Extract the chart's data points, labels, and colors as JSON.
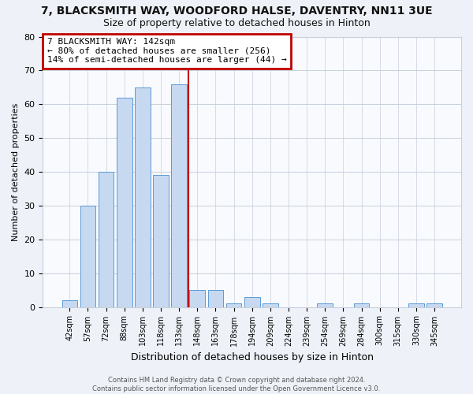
{
  "title": "7, BLACKSMITH WAY, WOODFORD HALSE, DAVENTRY, NN11 3UE",
  "subtitle": "Size of property relative to detached houses in Hinton",
  "xlabel": "Distribution of detached houses by size in Hinton",
  "ylabel": "Number of detached properties",
  "bin_labels": [
    "42sqm",
    "57sqm",
    "72sqm",
    "88sqm",
    "103sqm",
    "118sqm",
    "133sqm",
    "148sqm",
    "163sqm",
    "178sqm",
    "194sqm",
    "209sqm",
    "224sqm",
    "239sqm",
    "254sqm",
    "269sqm",
    "284sqm",
    "300sqm",
    "315sqm",
    "330sqm",
    "345sqm"
  ],
  "bar_heights": [
    2,
    30,
    40,
    62,
    65,
    39,
    66,
    5,
    5,
    1,
    3,
    1,
    0,
    0,
    1,
    0,
    1,
    0,
    0,
    1,
    1
  ],
  "bar_color": "#c6d9f1",
  "bar_edge_color": "#5b9bd5",
  "red_line_x": 6.5,
  "ylim": [
    0,
    80
  ],
  "yticks": [
    0,
    10,
    20,
    30,
    40,
    50,
    60,
    70,
    80
  ],
  "annotation_box_text": "7 BLACKSMITH WAY: 142sqm\n← 80% of detached houses are smaller (256)\n14% of semi-detached houses are larger (44) →",
  "annotation_box_color": "#ffffff",
  "annotation_box_edge_color": "#c00000",
  "red_line_color": "#c00000",
  "footer_text": "Contains HM Land Registry data © Crown copyright and database right 2024.\nContains public sector information licensed under the Open Government Licence v3.0.",
  "background_color": "#eef2f8",
  "plot_background_color": "#f8fafd",
  "grid_color": "#c8d0dc",
  "title_fontsize": 10,
  "subtitle_fontsize": 9
}
